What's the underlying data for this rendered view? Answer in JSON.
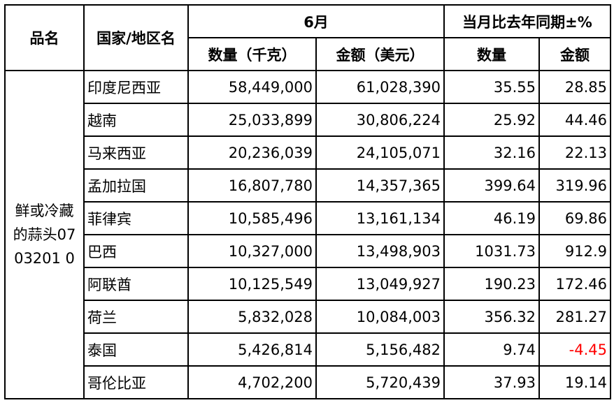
{
  "header": {
    "product_col": "品名",
    "country_col": "国家/地区名",
    "june_group": "6月",
    "yoy_group": "当月比去年同期±%",
    "qty_kg": "数量（千克）",
    "amount_usd": "金额（美元）",
    "yoy_qty": "数量",
    "yoy_amount": "金额"
  },
  "product": "鲜或冷藏的蒜头0703201 0",
  "negative_color": "#ff0000",
  "rows": [
    {
      "country": "印度尼西亚",
      "qty": "58,449,000",
      "amount": "61,028,390",
      "yoy_qty": "35.55",
      "yoy_amount": "28.85"
    },
    {
      "country": "越南",
      "qty": "25,033,899",
      "amount": "30,806,224",
      "yoy_qty": "25.92",
      "yoy_amount": "44.46"
    },
    {
      "country": "马来西亚",
      "qty": "20,236,039",
      "amount": "24,105,071",
      "yoy_qty": "32.16",
      "yoy_amount": "22.13"
    },
    {
      "country": "孟加拉国",
      "qty": "16,807,780",
      "amount": "14,357,365",
      "yoy_qty": "399.64",
      "yoy_amount": "319.96"
    },
    {
      "country": "菲律宾",
      "qty": "10,585,496",
      "amount": "13,161,134",
      "yoy_qty": "46.19",
      "yoy_amount": "69.86"
    },
    {
      "country": "巴西",
      "qty": "10,327,000",
      "amount": "13,498,903",
      "yoy_qty": "1031.73",
      "yoy_amount": "912.9"
    },
    {
      "country": "阿联酋",
      "qty": "10,125,549",
      "amount": "13,049,927",
      "yoy_qty": "190.23",
      "yoy_amount": "172.46"
    },
    {
      "country": "荷兰",
      "qty": "5,832,028",
      "amount": "10,084,003",
      "yoy_qty": "356.32",
      "yoy_amount": "281.27"
    },
    {
      "country": "泰国",
      "qty": "5,426,814",
      "amount": "5,156,482",
      "yoy_qty": "9.74",
      "yoy_amount": "-4.45"
    },
    {
      "country": "哥伦比亚",
      "qty": "4,702,200",
      "amount": "5,720,439",
      "yoy_qty": "37.93",
      "yoy_amount": "19.14"
    }
  ]
}
